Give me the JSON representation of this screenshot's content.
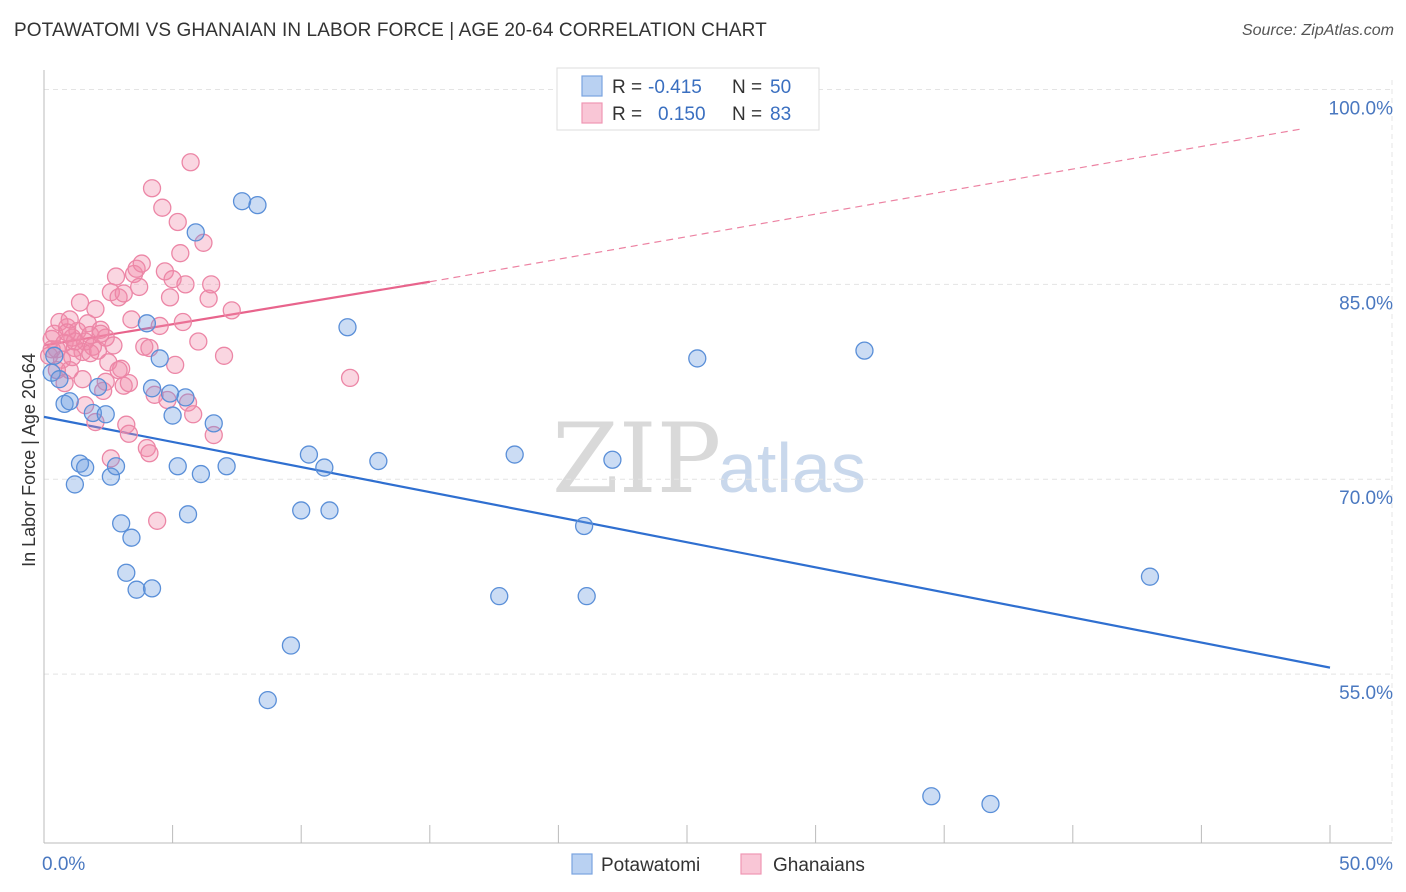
{
  "header": {
    "title": "POTAWATOMI VS GHANAIAN IN LABOR FORCE | AGE 20-64 CORRELATION CHART",
    "source": "Source: ZipAtlas.com"
  },
  "watermark": {
    "zip": "ZIP",
    "atlas": "atlas"
  },
  "legend_top": {
    "rows": [
      {
        "r_label": "R =",
        "r_value": "-0.415",
        "n_label": "N =",
        "n_value": "50"
      },
      {
        "r_label": "R =",
        "r_value": "0.150",
        "n_label": "N =",
        "n_value": "83"
      }
    ]
  },
  "legend_bottom": {
    "items": [
      "Potawatomi",
      "Ghanaians"
    ]
  },
  "chart_data": {
    "type": "scatter",
    "title": "POTAWATOMI VS GHANAIAN IN LABOR FORCE | AGE 20-64 CORRELATION CHART",
    "xlabel": "",
    "ylabel": "In Labor Force | Age 20-64",
    "xlim": [
      0,
      50
    ],
    "ylim": [
      42,
      101.5
    ],
    "x_tick_labels": [
      "0.0%",
      "50.0%"
    ],
    "y_ticks": [
      55,
      70,
      85,
      100
    ],
    "y_tick_labels": [
      "55.0%",
      "70.0%",
      "85.0%",
      "100.0%"
    ],
    "grid": true,
    "colors": {
      "potawatomi": "#6a9be0",
      "ghanaians": "#f08aaa",
      "blue_line": "#2f6fd0",
      "pink_line": "#e8648c"
    },
    "series": [
      {
        "name": "Potawatomi",
        "r": -0.415,
        "n": 50,
        "trend": {
          "x0": 0,
          "y0": 74.8,
          "x1": 50,
          "y1": 55.5
        },
        "points": [
          [
            0.3,
            78.2
          ],
          [
            0.6,
            77.7
          ],
          [
            0.8,
            75.8
          ],
          [
            1.0,
            76.0
          ],
          [
            1.2,
            69.6
          ],
          [
            1.4,
            71.2
          ],
          [
            1.6,
            70.9
          ],
          [
            1.9,
            75.1
          ],
          [
            2.1,
            77.1
          ],
          [
            2.4,
            75.0
          ],
          [
            2.6,
            70.2
          ],
          [
            2.8,
            71.0
          ],
          [
            3.0,
            66.6
          ],
          [
            3.2,
            62.8
          ],
          [
            3.4,
            65.5
          ],
          [
            3.6,
            61.5
          ],
          [
            4.0,
            82.0
          ],
          [
            4.2,
            61.6
          ],
          [
            4.2,
            77.0
          ],
          [
            4.5,
            79.3
          ],
          [
            4.9,
            76.6
          ],
          [
            5.0,
            74.9
          ],
          [
            5.2,
            71.0
          ],
          [
            5.5,
            76.3
          ],
          [
            5.6,
            67.3
          ],
          [
            5.9,
            89.0
          ],
          [
            6.1,
            70.4
          ],
          [
            7.1,
            71.0
          ],
          [
            6.6,
            74.3
          ],
          [
            7.7,
            91.4
          ],
          [
            8.3,
            91.1
          ],
          [
            8.7,
            53.0
          ],
          [
            9.6,
            57.2
          ],
          [
            10.0,
            67.6
          ],
          [
            10.3,
            71.9
          ],
          [
            10.9,
            70.9
          ],
          [
            11.1,
            67.6
          ],
          [
            11.8,
            81.7
          ],
          [
            13.0,
            71.4
          ],
          [
            17.7,
            61.0
          ],
          [
            18.3,
            71.9
          ],
          [
            21.0,
            66.4
          ],
          [
            21.1,
            61.0
          ],
          [
            22.1,
            71.5
          ],
          [
            25.4,
            79.3
          ],
          [
            31.9,
            79.9
          ],
          [
            34.5,
            45.6
          ],
          [
            36.8,
            45.0
          ],
          [
            43.0,
            62.5
          ],
          [
            0.4,
            79.5
          ]
        ]
      },
      {
        "name": "Ghanaians",
        "r": 0.15,
        "n": 83,
        "trend": {
          "x0": 0,
          "y0": 80.3,
          "x1": 15,
          "y1": 85.2,
          "dashed_to": {
            "x": 49,
            "y": 97.0
          }
        },
        "points": [
          [
            0.2,
            79.5
          ],
          [
            0.3,
            80.8
          ],
          [
            0.4,
            81.2
          ],
          [
            0.5,
            80.0
          ],
          [
            0.6,
            82.1
          ],
          [
            0.7,
            79.2
          ],
          [
            0.8,
            80.5
          ],
          [
            0.9,
            81.7
          ],
          [
            1.0,
            78.4
          ],
          [
            1.1,
            80.9
          ],
          [
            1.2,
            80.1
          ],
          [
            1.3,
            81.4
          ],
          [
            1.4,
            83.6
          ],
          [
            1.5,
            79.8
          ],
          [
            1.6,
            80.6
          ],
          [
            1.7,
            82.0
          ],
          [
            1.8,
            81.1
          ],
          [
            1.9,
            80.2
          ],
          [
            2.0,
            83.1
          ],
          [
            2.1,
            79.9
          ],
          [
            2.2,
            81.5
          ],
          [
            2.3,
            76.8
          ],
          [
            2.4,
            77.5
          ],
          [
            2.5,
            79.0
          ],
          [
            2.6,
            84.4
          ],
          [
            2.7,
            80.3
          ],
          [
            2.8,
            85.6
          ],
          [
            2.9,
            84.0
          ],
          [
            3.0,
            78.5
          ],
          [
            3.1,
            77.2
          ],
          [
            3.2,
            74.2
          ],
          [
            3.3,
            73.5
          ],
          [
            3.4,
            82.3
          ],
          [
            3.5,
            85.8
          ],
          [
            3.6,
            86.2
          ],
          [
            3.7,
            84.8
          ],
          [
            3.8,
            86.6
          ],
          [
            3.9,
            80.2
          ],
          [
            4.0,
            72.4
          ],
          [
            4.1,
            72.0
          ],
          [
            4.2,
            92.4
          ],
          [
            4.3,
            76.5
          ],
          [
            4.4,
            66.8
          ],
          [
            4.5,
            81.8
          ],
          [
            4.6,
            90.9
          ],
          [
            4.7,
            86.0
          ],
          [
            4.8,
            76.1
          ],
          [
            4.9,
            84.0
          ],
          [
            5.0,
            85.4
          ],
          [
            5.1,
            78.8
          ],
          [
            5.2,
            89.8
          ],
          [
            5.3,
            87.4
          ],
          [
            5.4,
            82.1
          ],
          [
            5.5,
            85.0
          ],
          [
            5.6,
            75.9
          ],
          [
            5.7,
            94.4
          ],
          [
            5.8,
            75.0
          ],
          [
            6.0,
            80.6
          ],
          [
            6.2,
            88.2
          ],
          [
            6.4,
            83.9
          ],
          [
            6.5,
            85.0
          ],
          [
            6.6,
            73.4
          ],
          [
            7.0,
            79.5
          ],
          [
            7.3,
            83.0
          ],
          [
            11.9,
            77.8
          ],
          [
            1.0,
            82.3
          ],
          [
            1.5,
            77.7
          ],
          [
            2.0,
            74.4
          ],
          [
            2.6,
            71.6
          ],
          [
            3.1,
            84.3
          ],
          [
            1.2,
            80.6
          ],
          [
            0.9,
            81.3
          ],
          [
            1.8,
            79.7
          ],
          [
            2.4,
            80.9
          ],
          [
            0.5,
            78.4
          ],
          [
            3.3,
            77.4
          ],
          [
            1.6,
            75.7
          ],
          [
            0.8,
            77.4
          ],
          [
            2.2,
            81.2
          ],
          [
            4.1,
            80.1
          ],
          [
            0.3,
            80.0
          ],
          [
            1.1,
            79.4
          ],
          [
            2.9,
            78.4
          ]
        ]
      }
    ]
  }
}
